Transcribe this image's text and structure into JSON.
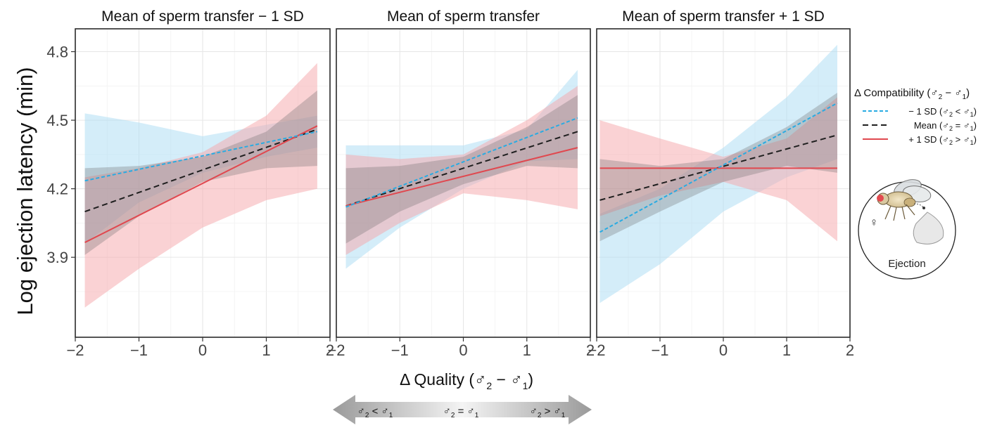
{
  "chart_data": [
    {
      "type": "line",
      "title": "Mean of sperm transfer − 1 SD",
      "xlim": [
        -2,
        2
      ],
      "ylim": [
        3.55,
        4.9
      ],
      "series": [
        {
          "key": "low",
          "color": "#29abe2",
          "dash": "dotted",
          "x": [
            -1.85,
            1.8
          ],
          "y": [
            4.235,
            4.45
          ],
          "band": {
            "x": [
              -1.85,
              -1,
              0,
              1,
              1.8
            ],
            "lo": [
              3.96,
              4.14,
              4.27,
              4.34,
              4.38
            ],
            "hi": [
              4.53,
              4.49,
              4.43,
              4.48,
              4.52
            ]
          }
        },
        {
          "key": "mean",
          "color": "#1f1f1f",
          "dash": "dashed",
          "x": [
            -1.85,
            1.8
          ],
          "y": [
            4.1,
            4.46
          ],
          "band": {
            "x": [
              -1.85,
              -1,
              0,
              1,
              1.8
            ],
            "lo": [
              3.91,
              4.08,
              4.23,
              4.29,
              4.3
            ],
            "hi": [
              4.29,
              4.3,
              4.34,
              4.45,
              4.63
            ]
          }
        },
        {
          "key": "high",
          "color": "#e0484f",
          "dash": "solid",
          "x": [
            -1.85,
            1.8
          ],
          "y": [
            3.965,
            4.475
          ],
          "band": {
            "x": [
              -1.85,
              -1,
              0,
              1,
              1.8
            ],
            "lo": [
              3.68,
              3.85,
              4.03,
              4.15,
              4.2
            ],
            "hi": [
              4.25,
              4.29,
              4.36,
              4.52,
              4.75
            ]
          }
        }
      ]
    },
    {
      "type": "line",
      "title": "Mean of sperm transfer",
      "xlim": [
        -2,
        2
      ],
      "ylim": [
        3.55,
        4.9
      ],
      "series": [
        {
          "key": "low",
          "color": "#29abe2",
          "dash": "dotted",
          "x": [
            -1.85,
            1.8
          ],
          "y": [
            4.12,
            4.51
          ],
          "band": {
            "x": [
              -1.85,
              -1,
              0,
              1,
              1.8
            ],
            "lo": [
              3.85,
              4.03,
              4.2,
              4.32,
              4.33
            ],
            "hi": [
              4.39,
              4.39,
              4.39,
              4.46,
              4.72
            ]
          }
        },
        {
          "key": "mean",
          "color": "#1f1f1f",
          "dash": "dashed",
          "x": [
            -1.85,
            1.8
          ],
          "y": [
            4.125,
            4.45
          ],
          "band": {
            "x": [
              -1.85,
              -1,
              0,
              1,
              1.8
            ],
            "lo": [
              3.96,
              4.1,
              4.22,
              4.3,
              4.29
            ],
            "hi": [
              4.29,
              4.3,
              4.34,
              4.47,
              4.61
            ]
          }
        },
        {
          "key": "high",
          "color": "#e0484f",
          "dash": "solid",
          "x": [
            -1.85,
            1.8
          ],
          "y": [
            4.125,
            4.38
          ],
          "band": {
            "x": [
              -1.85,
              -1,
              0,
              1,
              1.8
            ],
            "lo": [
              3.91,
              4.05,
              4.18,
              4.15,
              4.11
            ],
            "hi": [
              4.35,
              4.33,
              4.35,
              4.5,
              4.65
            ]
          }
        }
      ]
    },
    {
      "type": "line",
      "title": "Mean of sperm transfer + 1 SD",
      "xlim": [
        -2,
        2
      ],
      "ylim": [
        3.55,
        4.9
      ],
      "series": [
        {
          "key": "low",
          "color": "#29abe2",
          "dash": "dotted",
          "x": [
            -1.95,
            1.8
          ],
          "y": [
            4.01,
            4.575
          ],
          "band": {
            "x": [
              -1.95,
              -1,
              0,
              1,
              1.8
            ],
            "lo": [
              3.7,
              3.87,
              4.1,
              4.25,
              4.33
            ],
            "hi": [
              4.09,
              4.2,
              4.38,
              4.6,
              4.83
            ]
          }
        },
        {
          "key": "mean",
          "color": "#1f1f1f",
          "dash": "dashed",
          "x": [
            -1.95,
            1.8
          ],
          "y": [
            4.15,
            4.435
          ],
          "band": {
            "x": [
              -1.95,
              -1,
              0,
              1,
              1.8
            ],
            "lo": [
              3.97,
              4.1,
              4.23,
              4.3,
              4.27
            ],
            "hi": [
              4.33,
              4.3,
              4.33,
              4.47,
              4.62
            ]
          }
        },
        {
          "key": "high",
          "color": "#e0484f",
          "dash": "solid",
          "x": [
            -1.95,
            1.8
          ],
          "y": [
            4.29,
            4.29
          ],
          "band": {
            "x": [
              -1.95,
              -1,
              0,
              1,
              1.8
            ],
            "lo": [
              4.08,
              4.17,
              4.23,
              4.15,
              3.97
            ],
            "hi": [
              4.5,
              4.42,
              4.34,
              4.42,
              4.6
            ]
          }
        }
      ]
    }
  ],
  "axes": {
    "ylabel": "Log ejection latency (min)",
    "yticks": [
      3.9,
      4.2,
      4.5,
      4.8
    ],
    "ytick_labels": [
      "3.9",
      "4.2",
      "4.5",
      "4.8"
    ],
    "xticks": [
      -2,
      -1,
      0,
      1,
      2
    ],
    "xtick_labels": [
      "−2",
      "−1",
      "0",
      "1",
      "2"
    ],
    "xlabel": {
      "prefix": "Δ Quality (",
      "sub1": "2",
      "sub2": "1",
      "suffix": ")"
    }
  },
  "arrow": {
    "left": {
      "sub_a": "2",
      "op": "<",
      "sub_b": "1"
    },
    "mid": {
      "sub_a": "2",
      "op": "=",
      "sub_b": "1"
    },
    "right": {
      "sub_a": "2",
      "op": ">",
      "sub_b": "1"
    }
  },
  "legend": {
    "title": {
      "prefix": "Δ Compatibility (",
      "sub_a": "2",
      "op": "−",
      "sub_b": "1",
      "suffix": ")"
    },
    "items": [
      {
        "key": "low",
        "label": "− 1 SD",
        "sub_a": "2",
        "op": "<",
        "sub_b": "1",
        "color": "#29abe2",
        "dash": "dotted"
      },
      {
        "key": "mean",
        "label": "Mean",
        "sub_a": "2",
        "op": "=",
        "sub_b": "1",
        "color": "#1f1f1f",
        "dash": "dashed"
      },
      {
        "key": "high",
        "label": "+ 1 SD",
        "sub_a": "2",
        "op": ">",
        "sub_b": "1",
        "color": "#e0484f",
        "dash": "solid"
      }
    ]
  },
  "inset": {
    "female_symbol": "♀",
    "caption": "Ejection"
  },
  "symbols": {
    "male": "♂"
  },
  "band_colors": {
    "low": "#aadcf3",
    "mean": "#6b6b6b",
    "high": "#f6a5aa"
  }
}
